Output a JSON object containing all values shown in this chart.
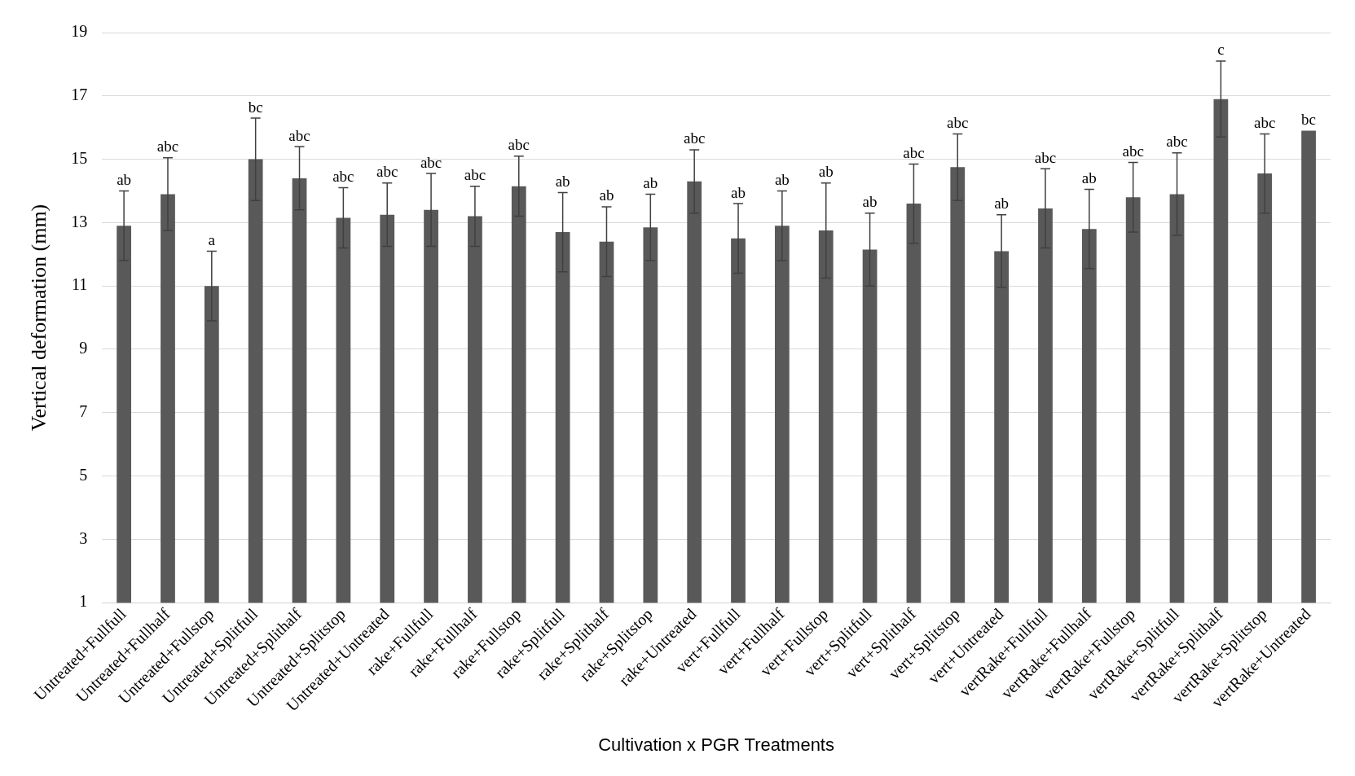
{
  "chart_data": {
    "type": "bar",
    "xlabel": "Cultivation x PGR Treatments",
    "ylabel": "Vertical deformation (mm)",
    "categories": [
      "Untreated+Fullfull",
      "Untreated+Fullhalf",
      "Untreated+Fullstop",
      "Untreated+Splitfull",
      "Untreated+Splithalf",
      "Untreated+Splitstop",
      "Untreated+Untreated",
      "rake+Fullfull",
      "rake+Fullhalf",
      "rake+Fullstop",
      "rake+Splitfull",
      "rake+Splithalf",
      "rake+Splitstop",
      "rake+Untreated",
      "vert+Fullfull",
      "vert+Fullhalf",
      "vert+Fullstop",
      "vert+Splitfull",
      "vert+Splithalf",
      "vert+Splitstop",
      "vert+Untreated",
      "vertRake+Fullfull",
      "vertRake+Fullhalf",
      "vertRake+Fullstop",
      "vertRake+Splitfull",
      "vertRake+Splithalf",
      "vertRake+Splitstop",
      "vertRake+Untreated"
    ],
    "values": [
      12.9,
      13.9,
      11.0,
      15.0,
      14.4,
      13.15,
      13.25,
      13.4,
      13.2,
      14.15,
      12.7,
      12.4,
      12.85,
      14.3,
      12.5,
      12.9,
      12.75,
      12.15,
      13.6,
      14.75,
      12.1,
      13.45,
      12.8,
      13.8,
      13.9,
      16.9,
      14.55,
      15.9
    ],
    "errors": [
      1.1,
      1.15,
      1.1,
      1.3,
      1.0,
      0.95,
      1.0,
      1.15,
      0.95,
      0.95,
      1.25,
      1.1,
      1.05,
      1.0,
      1.1,
      1.1,
      1.5,
      1.15,
      1.25,
      1.05,
      1.15,
      1.25,
      1.25,
      1.1,
      1.3,
      1.2,
      1.25,
      null
    ],
    "color": "#595959",
    "ylim": [
      1,
      19
    ],
    "yticks": [
      1,
      3,
      5,
      7,
      9,
      11,
      13,
      15,
      17,
      19
    ],
    "grid": "y",
    "annotations": [
      {
        "text": "ab",
        "x": "Untreated+Fullfull",
        "y": 14.0
      },
      {
        "text": "abc",
        "x": "Untreated+Fullhalf",
        "y": 15.05
      },
      {
        "text": "a",
        "x": "Untreated+Fullstop",
        "y": 12.1
      },
      {
        "text": "bc",
        "x": "Untreated+Splitfull",
        "y": 16.3
      },
      {
        "text": "abc",
        "x": "Untreated+Splithalf",
        "y": 15.4
      },
      {
        "text": "abc",
        "x": "Untreated+Splitstop",
        "y": 14.1
      },
      {
        "text": "abc",
        "x": "Untreated+Untreated",
        "y": 14.25
      },
      {
        "text": "abc",
        "x": "rake+Fullfull",
        "y": 14.55
      },
      {
        "text": "abc",
        "x": "rake+Fullhalf",
        "y": 14.15
      },
      {
        "text": "abc",
        "x": "rake+Fullstop",
        "y": 15.1
      },
      {
        "text": "ab",
        "x": "rake+Splitfull",
        "y": 13.95
      },
      {
        "text": "ab",
        "x": "rake+Splithalf",
        "y": 13.5
      },
      {
        "text": "ab",
        "x": "rake+Splitstop",
        "y": 13.9
      },
      {
        "text": "abc",
        "x": "rake+Untreated",
        "y": 15.3
      },
      {
        "text": "ab",
        "x": "vert+Fullfull",
        "y": 13.6
      },
      {
        "text": "ab",
        "x": "vert+Fullhalf",
        "y": 14.0
      },
      {
        "text": "ab",
        "x": "vert+Fullstop",
        "y": 14.25
      },
      {
        "text": "ab",
        "x": "vert+Splitfull",
        "y": 13.3
      },
      {
        "text": "abc",
        "x": "vert+Splithalf",
        "y": 14.85
      },
      {
        "text": "abc",
        "x": "vert+Splitstop",
        "y": 15.8
      },
      {
        "text": "ab",
        "x": "vert+Untreated",
        "y": 13.25
      },
      {
        "text": "abc",
        "x": "vertRake+Fullfull",
        "y": 14.7
      },
      {
        "text": "ab",
        "x": "vertRake+Fullhalf",
        "y": 14.05
      },
      {
        "text": "abc",
        "x": "vertRake+Fullstop",
        "y": 14.9
      },
      {
        "text": "abc",
        "x": "vertRake+Splitfull",
        "y": 15.2
      },
      {
        "text": "c",
        "x": "vertRake+Splithalf",
        "y": 18.1
      },
      {
        "text": "abc",
        "x": "vertRake+Splitstop",
        "y": 15.8
      },
      {
        "text": "bc",
        "x": "vertRake+Untreated",
        "y": 15.9
      }
    ]
  }
}
